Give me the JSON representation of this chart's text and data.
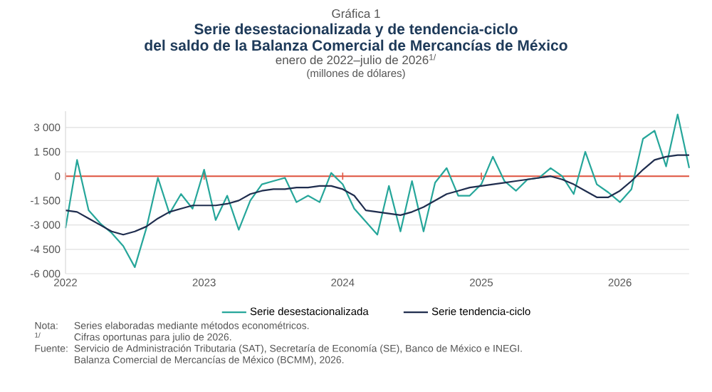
{
  "chart_data": {
    "type": "line",
    "title": "Serie desestacionalizada y de tendencia-ciclo del saldo de la Balanza Comercial de Mercancías de México",
    "subtitle": "enero de 2022–julio de 2026$^{1/}$",
    "annotations": [
      "Gráfica 1",
      "(millones de dólares)",
      "Nota:",
      "Series elaboradas mediante métodos econométricos.",
      "1/",
      "Cifras oportunas para julio de 2026.",
      "Fuente:",
      "Servicio de Administración Tributaria (SAT), Secretaría de Economía (SE), Banco de México e INEGI.",
      "Balanza Comercial de Mercancías de México (BCMM), 2026."
    ],
    "x": [
      "2022-01",
      "2022-02",
      "2022-03",
      "2022-04",
      "2022-05",
      "2022-06",
      "2022-07",
      "2022-08",
      "2022-09",
      "2022-10",
      "2022-11",
      "2022-12",
      "2023-01",
      "2023-02",
      "2023-03",
      "2023-04",
      "2023-05",
      "2023-06",
      "2023-07",
      "2023-08",
      "2023-09",
      "2023-10",
      "2023-11",
      "2023-12",
      "2024-01",
      "2024-02",
      "2024-03",
      "2024-04",
      "2024-05",
      "2024-06",
      "2024-07",
      "2024-08",
      "2024-09",
      "2024-10",
      "2024-11",
      "2024-12",
      "2025-01",
      "2025-02",
      "2025-03",
      "2025-04",
      "2025-05",
      "2025-06",
      "2025-07",
      "2025-08",
      "2025-09",
      "2025-10",
      "2025-11",
      "2025-12",
      "2026-01",
      "2026-02",
      "2026-03",
      "2026-04",
      "2026-05",
      "2026-06",
      "2026-07"
    ],
    "series": [
      {
        "name": "Serie desestacionalizada",
        "color": "#26a69a",
        "values": [
          -3200,
          1000,
          -2100,
          -2900,
          -3500,
          -4300,
          -5600,
          -3200,
          -100,
          -2300,
          -1100,
          -2000,
          400,
          -2700,
          -1200,
          -3300,
          -1500,
          -500,
          -300,
          -100,
          -1600,
          -1200,
          -1600,
          200,
          -500,
          -2000,
          -2800,
          -3600,
          -600,
          -3400,
          -300,
          -3400,
          -400,
          500,
          -1200,
          -1200,
          -500,
          1200,
          -300,
          -900,
          -200,
          -100,
          500,
          0,
          -1100,
          1500,
          -500,
          -1000,
          -1600,
          -800,
          2300,
          2800,
          600,
          3800,
          500
        ]
      },
      {
        "name": "Serie tendencia-ciclo",
        "color": "#1f2d4e",
        "values": [
          -2100,
          -2200,
          -2600,
          -3000,
          -3400,
          -3600,
          -3400,
          -3100,
          -2600,
          -2200,
          -2000,
          -1800,
          -1800,
          -1800,
          -1700,
          -1500,
          -1100,
          -900,
          -800,
          -800,
          -700,
          -700,
          -600,
          -600,
          -800,
          -1200,
          -2100,
          -2200,
          -2300,
          -2400,
          -2200,
          -1900,
          -1500,
          -1100,
          -900,
          -700,
          -600,
          -500,
          -400,
          -300,
          -200,
          -100,
          0,
          -200,
          -500,
          -900,
          -1300,
          -1300,
          -900,
          -300,
          400,
          1000,
          1200,
          1300,
          1300
        ]
      }
    ],
    "xlim": [
      "2022-01",
      "2026-07"
    ],
    "xticks": [
      "2022",
      "2023",
      "2024",
      "2025",
      "2026"
    ],
    "ylim": [
      -6000,
      4000
    ],
    "yticks": [
      {
        "value": -6000,
        "label": "-6 000"
      },
      {
        "value": -4500,
        "label": "-4 500"
      },
      {
        "value": -3000,
        "label": "-3 000"
      },
      {
        "value": -1500,
        "label": "-1 500"
      },
      0,
      {
        "value": 1500,
        "label": "1 500"
      },
      {
        "value": 3000,
        "label": "3 000"
      }
    ],
    "ref_lines": [
      {
        "axis": "y",
        "value": 0,
        "color": "#e0533f"
      }
    ],
    "grid": "y",
    "legend": "bottom"
  }
}
